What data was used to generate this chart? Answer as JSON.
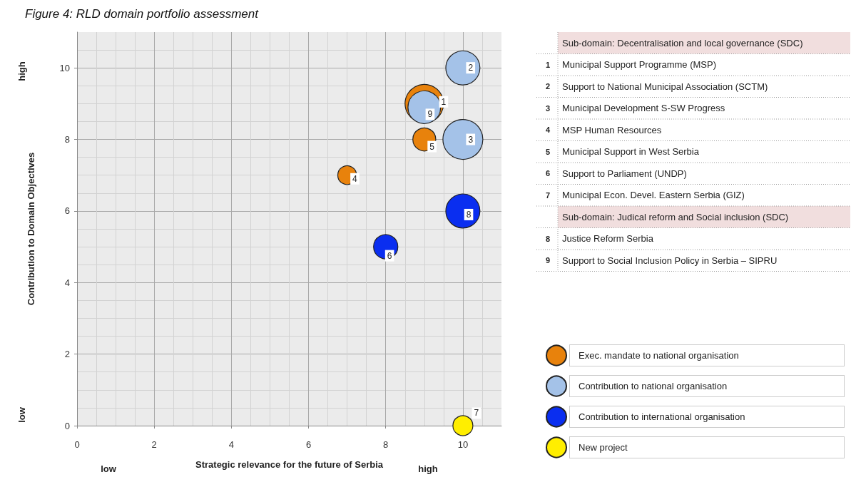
{
  "chart_data": {
    "type": "bubble",
    "title": "Figure 4: RLD domain portfolio assessment",
    "xlabel": "Strategic relevance for the future of Serbia",
    "ylabel": "Contribution to Domain Objectives",
    "xlim": [
      0,
      11
    ],
    "ylim": [
      0,
      11
    ],
    "xticks": [
      0,
      2,
      4,
      6,
      8,
      10
    ],
    "yticks": [
      0,
      2,
      4,
      6,
      8,
      10
    ],
    "grid": true,
    "legend": "right",
    "marker": "circle",
    "series": [
      {
        "name": "Exec. mandate to national organisation",
        "color": "#e8820c",
        "x": [
          9,
          9,
          7
        ],
        "values": [
          9,
          8,
          7
        ],
        "sizes": [
          0.93,
          0.33,
          0.22
        ]
      },
      {
        "name": "Contribution to national organisation",
        "color": "#a4c2e8",
        "x": [
          9,
          10,
          10
        ],
        "values": [
          8.9,
          10,
          8
        ],
        "sizes": [
          0.67,
          0.73,
          1
        ]
      },
      {
        "name": "Contribution to international organisation",
        "color": "#0a2ef0",
        "x": [
          10,
          8
        ],
        "values": [
          6,
          5
        ],
        "sizes": [
          0.73,
          0.37
        ]
      },
      {
        "name": "New project",
        "color": "#ffee00",
        "x": [
          10
        ],
        "values": [
          0
        ],
        "sizes": [
          0.25
        ]
      }
    ],
    "annotations": [
      "high",
      "low",
      "low",
      "high",
      "Sub-domain: Decentralisation and local governance (SDC)",
      "1 Municipal Support Programme (MSP)",
      "2 Support to National Municipal Association (SCTM)",
      "3 Municipal Development S-SW Progress",
      "4 MSP Human Resources",
      "5 Municipal Support in West Serbia",
      "6 Support to Parliament (UNDP)",
      "7 Municipal Econ. Devel. Eastern Serbia (GIZ)",
      "Sub-domain: Judical reform and Social inclusion (SDC)",
      "8 Justice Reform Serbia",
      "9 Support to Social Inclusion Policy in Serbia – SIPRU",
      {
        "text": "1",
        "x": 9.5,
        "y": 9.05
      },
      {
        "text": "9",
        "x": 9.15,
        "y": 8.7
      },
      {
        "text": "2",
        "x": 10.2,
        "y": 10
      },
      {
        "text": "3",
        "x": 10.2,
        "y": 8
      },
      {
        "text": "5",
        "x": 9.2,
        "y": 7.8
      },
      {
        "text": "4",
        "x": 7.2,
        "y": 6.9
      },
      {
        "text": "8",
        "x": 10.15,
        "y": 5.9
      },
      {
        "text": "6",
        "x": 8.1,
        "y": 4.75
      },
      {
        "text": "7",
        "x": 10.35,
        "y": 0.35
      }
    ]
  }
}
